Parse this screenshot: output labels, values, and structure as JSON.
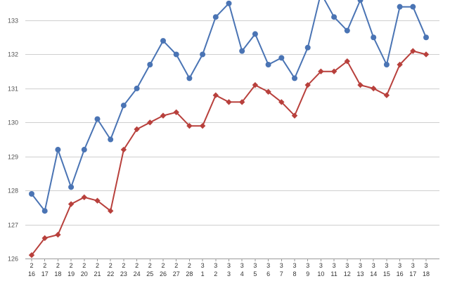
{
  "chart_data": {
    "type": "line",
    "title": "",
    "xlabel": "",
    "ylabel": "",
    "ylim": [
      126,
      133.6
    ],
    "yticks": [
      126,
      127,
      128,
      129,
      130,
      131,
      132,
      133
    ],
    "grid": true,
    "legend": "none",
    "categories": [
      {
        "month": "2",
        "day": "16"
      },
      {
        "month": "2",
        "day": "17"
      },
      {
        "month": "2",
        "day": "18"
      },
      {
        "month": "2",
        "day": "19"
      },
      {
        "month": "2",
        "day": "20"
      },
      {
        "month": "2",
        "day": "21"
      },
      {
        "month": "2",
        "day": "22"
      },
      {
        "month": "2",
        "day": "23"
      },
      {
        "month": "2",
        "day": "24"
      },
      {
        "month": "2",
        "day": "25"
      },
      {
        "month": "2",
        "day": "26"
      },
      {
        "month": "2",
        "day": "27"
      },
      {
        "month": "2",
        "day": "28"
      },
      {
        "month": "3",
        "day": "1"
      },
      {
        "month": "3",
        "day": "2"
      },
      {
        "month": "3",
        "day": "3"
      },
      {
        "month": "3",
        "day": "4"
      },
      {
        "month": "3",
        "day": "5"
      },
      {
        "month": "3",
        "day": "6"
      },
      {
        "month": "3",
        "day": "7"
      },
      {
        "month": "3",
        "day": "8"
      },
      {
        "month": "3",
        "day": "9"
      },
      {
        "month": "3",
        "day": "10"
      },
      {
        "month": "3",
        "day": "11"
      },
      {
        "month": "3",
        "day": "12"
      },
      {
        "month": "3",
        "day": "13"
      },
      {
        "month": "3",
        "day": "14"
      },
      {
        "month": "3",
        "day": "15"
      },
      {
        "month": "3",
        "day": "16"
      },
      {
        "month": "3",
        "day": "17"
      },
      {
        "month": "3",
        "day": "18"
      }
    ],
    "series": [
      {
        "color": "#4a74b4",
        "marker": "circle",
        "values": [
          127.9,
          127.4,
          129.2,
          128.1,
          129.2,
          130.1,
          129.5,
          130.5,
          131.0,
          131.7,
          132.4,
          132.0,
          131.3,
          132.0,
          133.1,
          133.5,
          132.1,
          132.6,
          131.7,
          131.9,
          131.3,
          132.2,
          133.8,
          133.1,
          132.7,
          133.6,
          132.5,
          131.7,
          133.4,
          133.4,
          132.5
        ]
      },
      {
        "color": "#b8403c",
        "marker": "diamond",
        "values": [
          126.1,
          126.6,
          126.7,
          127.6,
          127.8,
          127.7,
          127.4,
          129.2,
          129.8,
          130.0,
          130.2,
          130.3,
          129.9,
          129.9,
          130.8,
          130.6,
          130.6,
          131.1,
          130.9,
          130.6,
          130.2,
          131.1,
          131.5,
          131.5,
          131.8,
          131.1,
          131.0,
          130.8,
          131.7,
          132.1,
          132.0
        ]
      }
    ]
  }
}
